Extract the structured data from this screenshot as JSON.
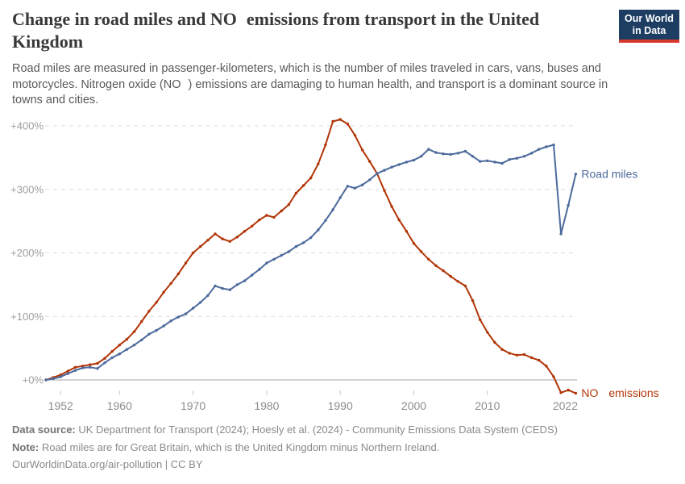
{
  "header": {
    "title_pre": "Change in road miles and NO",
    "title_post": "emissions from transport in the United Kingdom",
    "subtitle_pre": "Road miles are measured in passenger-kilometers, which is the number of miles traveled in cars, vans, buses and motorcycles. Nitrogen oxide (NO",
    "subtitle_post": ") emissions are damaging to human health, and transport is a dominant source in towns and cities."
  },
  "logo": {
    "line1": "Our World",
    "line2": "in Data",
    "bg_color": "#1d3d63",
    "strip_color": "#d7382d"
  },
  "chart_data": {
    "type": "line",
    "title": "Change in road miles and NOx emissions from transport in the United Kingdom",
    "grid": "horizontal-dashed",
    "ylim": [
      -25,
      415
    ],
    "xlim": [
      1950,
      2022
    ],
    "years": [
      1950,
      1951,
      1952,
      1953,
      1954,
      1955,
      1956,
      1957,
      1958,
      1959,
      1960,
      1961,
      1962,
      1963,
      1964,
      1965,
      1966,
      1967,
      1968,
      1969,
      1970,
      1971,
      1972,
      1973,
      1974,
      1975,
      1976,
      1977,
      1978,
      1979,
      1980,
      1981,
      1982,
      1983,
      1984,
      1985,
      1986,
      1987,
      1988,
      1989,
      1990,
      1991,
      1992,
      1993,
      1994,
      1995,
      1996,
      1997,
      1998,
      1999,
      2000,
      2001,
      2002,
      2003,
      2004,
      2005,
      2006,
      2007,
      2008,
      2009,
      2010,
      2011,
      2012,
      2013,
      2014,
      2015,
      2016,
      2017,
      2018,
      2019,
      2020,
      2021,
      2022
    ],
    "yticks": [
      {
        "value": 0,
        "label": "+0%"
      },
      {
        "value": 100,
        "label": "+100%"
      },
      {
        "value": 200,
        "label": "+200%"
      },
      {
        "value": 300,
        "label": "+300%"
      },
      {
        "value": 400,
        "label": "+400%"
      }
    ],
    "xticks": [
      {
        "year": 1952,
        "label": "1952"
      },
      {
        "year": 1960,
        "label": "1960"
      },
      {
        "year": 1970,
        "label": "1970"
      },
      {
        "year": 1980,
        "label": "1980"
      },
      {
        "year": 1990,
        "label": "1990"
      },
      {
        "year": 2000,
        "label": "2000"
      },
      {
        "year": 2010,
        "label": "2010"
      },
      {
        "year": 2022,
        "label": "2022"
      }
    ],
    "series": [
      {
        "id": "nox-emissions",
        "name": "NOx emissions",
        "label_parts": [
          "NO",
          "emissions"
        ],
        "color": "#B13507",
        "values": [
          0,
          4,
          8,
          14,
          20,
          22,
          24,
          26,
          34,
          45,
          55,
          64,
          76,
          92,
          108,
          122,
          138,
          152,
          167,
          184,
          200,
          210,
          220,
          230,
          222,
          218,
          225,
          234,
          242,
          252,
          259,
          256,
          266,
          276,
          294,
          306,
          318,
          340,
          370,
          407,
          410,
          403,
          385,
          362,
          344,
          325,
          298,
          273,
          252,
          234,
          215,
          202,
          190,
          180,
          172,
          163,
          155,
          148,
          125,
          95,
          75,
          59,
          48,
          42,
          39,
          40,
          35,
          31,
          22,
          5,
          -20,
          -16,
          -21
        ]
      },
      {
        "id": "road-miles",
        "name": "Road miles",
        "label": "Road miles",
        "color": "#4C6A9C",
        "values": [
          0,
          2,
          5,
          10,
          15,
          19,
          20,
          18,
          27,
          35,
          41,
          48,
          55,
          63,
          72,
          78,
          85,
          93,
          99,
          104,
          113,
          122,
          133,
          148,
          144,
          142,
          150,
          156,
          165,
          174,
          184,
          190,
          196,
          202,
          210,
          216,
          224,
          236,
          251,
          268,
          287,
          305,
          302,
          307,
          315,
          325,
          330,
          335,
          339,
          343,
          346,
          352,
          363,
          358,
          356,
          355,
          357,
          360,
          352,
          344,
          345,
          343,
          341,
          347,
          349,
          352,
          357,
          363,
          367,
          370,
          230,
          275,
          324
        ]
      }
    ]
  },
  "footer": {
    "source_label": "Data source:",
    "source_text": " UK Department for Transport (2024); Hoesly et al. (2024) - Community Emissions Data System (CEDS)",
    "note_label": "Note:",
    "note_text": " Road miles are for Great Britain, which is the United Kingdom minus Northern Ireland.",
    "license_text": "OurWorldinData.org/air-pollution | CC BY"
  }
}
